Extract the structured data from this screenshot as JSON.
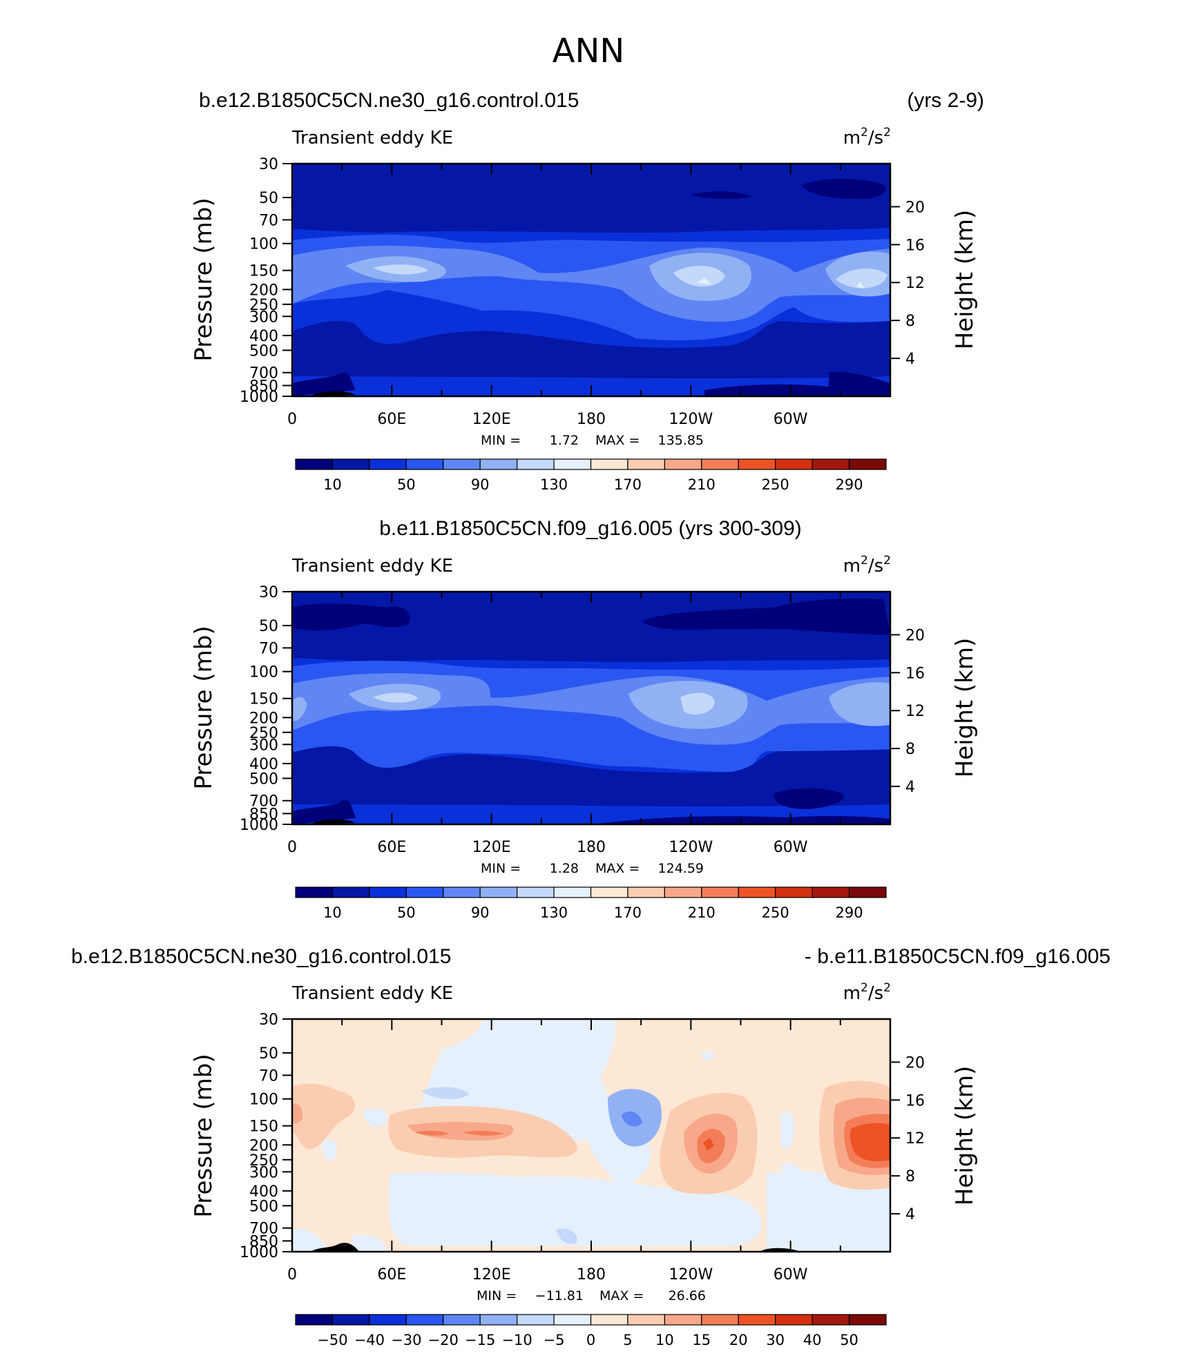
{
  "page": {
    "title": "ANN"
  },
  "colors": {
    "plot_bg_top": "#0a2ad0",
    "plot_bg_mid": "#0a2ad0",
    "diff_bg": "#fde8d6"
  },
  "chart_data": [
    {
      "type": "heatmap",
      "heading_left": "b.e12.B1850C5CN.ne30_g16.control.015",
      "heading_right": "(yrs 2-9)",
      "subtitle_left": "Transient eddy KE",
      "units_base": "m",
      "units_exp": "2",
      "units_mid": "/s",
      "units_exp2": "2",
      "ylabel": "Pressure (mb)",
      "ylabel_right": "Height (km)",
      "y_ticks": [
        "30",
        "50",
        "70",
        "100",
        "150",
        "200",
        "250",
        "300",
        "400",
        "500",
        "700",
        "850",
        "1000"
      ],
      "y_right_ticks": [
        "20",
        "16",
        "12",
        "8",
        "4"
      ],
      "x_ticks": [
        "0",
        "60E",
        "120E",
        "180",
        "120W",
        "60W"
      ],
      "min_label": "MIN =",
      "min_value": "1.72",
      "max_label": "MAX =",
      "max_value": "135.85",
      "colorbar_labels": [
        "10",
        "50",
        "90",
        "130",
        "170",
        "210",
        "250",
        "290"
      ],
      "colorbar_colors": [
        "#00007a",
        "#0517a6",
        "#0a30d9",
        "#2a57f2",
        "#5f86f2",
        "#91b1f5",
        "#c4d8f9",
        "#e5f0fc",
        "#fde8d6",
        "#fbcdb0",
        "#f8a88a",
        "#f37d58",
        "#ee5325",
        "#d2300e",
        "#a4170b",
        "#7a0a0a"
      ]
    },
    {
      "type": "heatmap",
      "heading_left": "b.e11.B1850C5CN.f09_g16.005 (yrs 300-309)",
      "subtitle_left": "Transient eddy KE",
      "units_base": "m",
      "units_exp": "2",
      "units_mid": "/s",
      "units_exp2": "2",
      "ylabel": "Pressure (mb)",
      "ylabel_right": "Height (km)",
      "y_ticks": [
        "30",
        "50",
        "70",
        "100",
        "150",
        "200",
        "250",
        "300",
        "400",
        "500",
        "700",
        "850",
        "1000"
      ],
      "y_right_ticks": [
        "20",
        "16",
        "12",
        "8",
        "4"
      ],
      "x_ticks": [
        "0",
        "60E",
        "120E",
        "180",
        "120W",
        "60W"
      ],
      "min_label": "MIN =",
      "min_value": "1.28",
      "max_label": "MAX =",
      "max_value": "124.59",
      "colorbar_labels": [
        "10",
        "50",
        "90",
        "130",
        "170",
        "210",
        "250",
        "290"
      ]
    },
    {
      "type": "heatmap",
      "heading_left": "b.e12.B1850C5CN.ne30_g16.control.015",
      "heading_right": "- b.e11.B1850C5CN.f09_g16.005",
      "subtitle_left": "Transient eddy KE",
      "units_base": "m",
      "units_exp": "2",
      "units_mid": "/s",
      "units_exp2": "2",
      "ylabel": "Pressure (mb)",
      "ylabel_right": "Height (km)",
      "y_ticks": [
        "30",
        "50",
        "70",
        "100",
        "150",
        "200",
        "250",
        "300",
        "400",
        "500",
        "700",
        "850",
        "1000"
      ],
      "y_right_ticks": [
        "20",
        "16",
        "12",
        "8",
        "4"
      ],
      "x_ticks": [
        "0",
        "60E",
        "120E",
        "180",
        "120W",
        "60W"
      ],
      "min_label": "MIN =",
      "min_value": "−11.81",
      "max_label": "MAX =",
      "max_value": "26.66",
      "colorbar_labels": [
        "−50",
        "−40",
        "−30",
        "−20",
        "−15",
        "−10",
        "−5",
        "0",
        "5",
        "10",
        "15",
        "20",
        "30",
        "40",
        "50"
      ]
    }
  ]
}
